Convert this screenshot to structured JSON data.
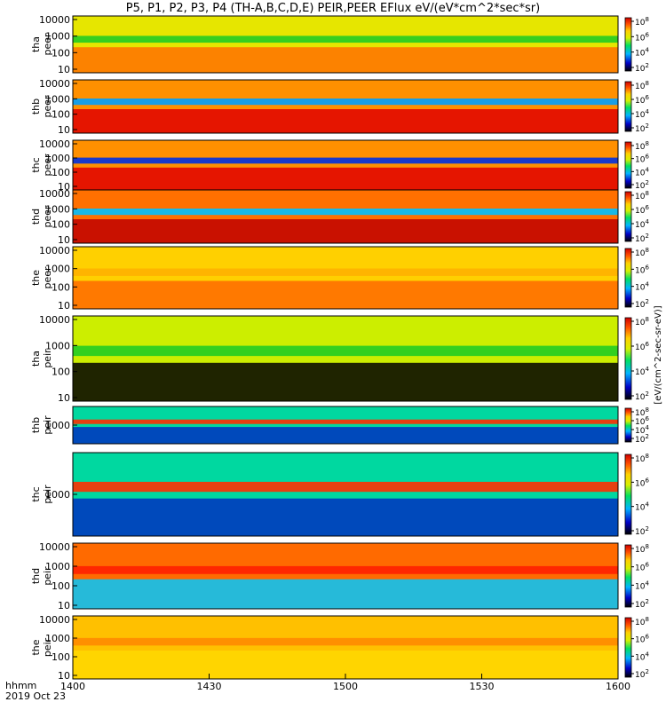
{
  "chart_data": {
    "type": "heatmap",
    "title": "P5, P1, P2, P3, P4 (TH-A,B,C,D,E) PEIR,PEER EFlux eV/(eV*cm^2*sec*sr)",
    "x": {
      "ticks": [
        "1400",
        "1430",
        "1500",
        "1530",
        "1600"
      ],
      "corner_label_top": "hhmm",
      "corner_label_bottom": "2019 Oct 23"
    },
    "colorbar": {
      "ticks": [
        "10^2",
        "10^4",
        "10^6",
        "10^8"
      ],
      "label": "[eV/(cm^2-sec-sr-eV)]"
    },
    "panels": [
      {
        "probe": "tha",
        "species": "peer",
        "yticks": [
          "10",
          "100",
          "1000",
          "10000"
        ]
      },
      {
        "probe": "thb",
        "species": "peer",
        "yticks": [
          "10",
          "100",
          "1000",
          "10000"
        ]
      },
      {
        "probe": "thc",
        "species": "peer",
        "yticks": [
          "10",
          "100",
          "1000",
          "10000"
        ]
      },
      {
        "probe": "thd",
        "species": "peer",
        "yticks": [
          "10",
          "100",
          "1000",
          "10000"
        ]
      },
      {
        "probe": "the",
        "species": "peer",
        "yticks": [
          "10",
          "100",
          "1000",
          "10000"
        ]
      },
      {
        "probe": "tha",
        "species": "peir",
        "yticks": [
          "10",
          "100",
          "1000",
          "10000"
        ]
      },
      {
        "probe": "thb",
        "species": "peir",
        "yticks": [
          "1000"
        ]
      },
      {
        "probe": "thc",
        "species": "peir",
        "yticks": [
          "1000"
        ]
      },
      {
        "probe": "thd",
        "species": "peir",
        "yticks": [
          "10",
          "100",
          "1000",
          "10000"
        ]
      },
      {
        "probe": "the",
        "species": "peir",
        "yticks": [
          "10",
          "100",
          "1000",
          "10000"
        ]
      }
    ]
  }
}
